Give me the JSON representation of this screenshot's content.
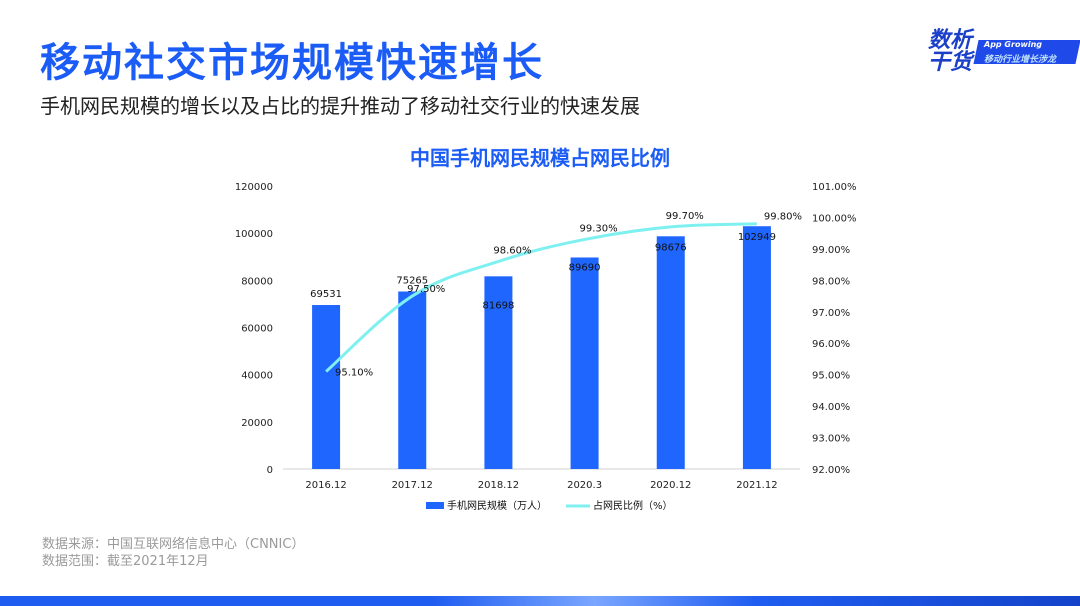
{
  "header": {
    "title": "移动社交市场规模快速增长",
    "subtitle": "手机网民规模的增长以及占比的提升推动了移动社交行业的快速发展"
  },
  "logo": {
    "text_main": "数析干货",
    "text_en": "App Growing",
    "text_cn": "移动行业增长涉龙"
  },
  "footer": {
    "source_line1": "数据来源：中国互联网络信息中心（CNNIC）",
    "source_line2": "数据范围：截至2021年12月"
  },
  "colors": {
    "accent": "#1a5cf5",
    "bar": "#1f66ff",
    "line": "#7ff0f0"
  },
  "chart_data": {
    "type": "bar",
    "title": "中国手机网民规模占网民比例",
    "categories": [
      "2016.12",
      "2017.12",
      "2018.12",
      "2020.3",
      "2020.12",
      "2021.12"
    ],
    "series": [
      {
        "name": "手机网民规模（万人）",
        "type": "bar",
        "axis": "left",
        "values": [
          69531,
          75265,
          81698,
          89690,
          98676,
          102949
        ],
        "labels": [
          "69531",
          "75265",
          "81698",
          "89690",
          "98676",
          "102949"
        ]
      },
      {
        "name": "占网民比例（%）",
        "type": "line",
        "axis": "right",
        "values": [
          95.1,
          97.5,
          98.6,
          99.3,
          99.7,
          99.8
        ],
        "labels": [
          "95.10%",
          "97.50%",
          "98.60%",
          "99.30%",
          "99.70%",
          "99.80%"
        ]
      }
    ],
    "left_axis": {
      "ylim": [
        0,
        120000
      ],
      "ticks": [
        "0",
        "20000",
        "40000",
        "60000",
        "80000",
        "100000",
        "120000"
      ]
    },
    "right_axis": {
      "ylim": [
        92,
        101
      ],
      "ticks": [
        "92.00%",
        "93.00%",
        "94.00%",
        "95.00%",
        "96.00%",
        "97.00%",
        "98.00%",
        "99.00%",
        "100.00%",
        "101.00%"
      ]
    },
    "grid": false,
    "legend_position": "bottom"
  }
}
